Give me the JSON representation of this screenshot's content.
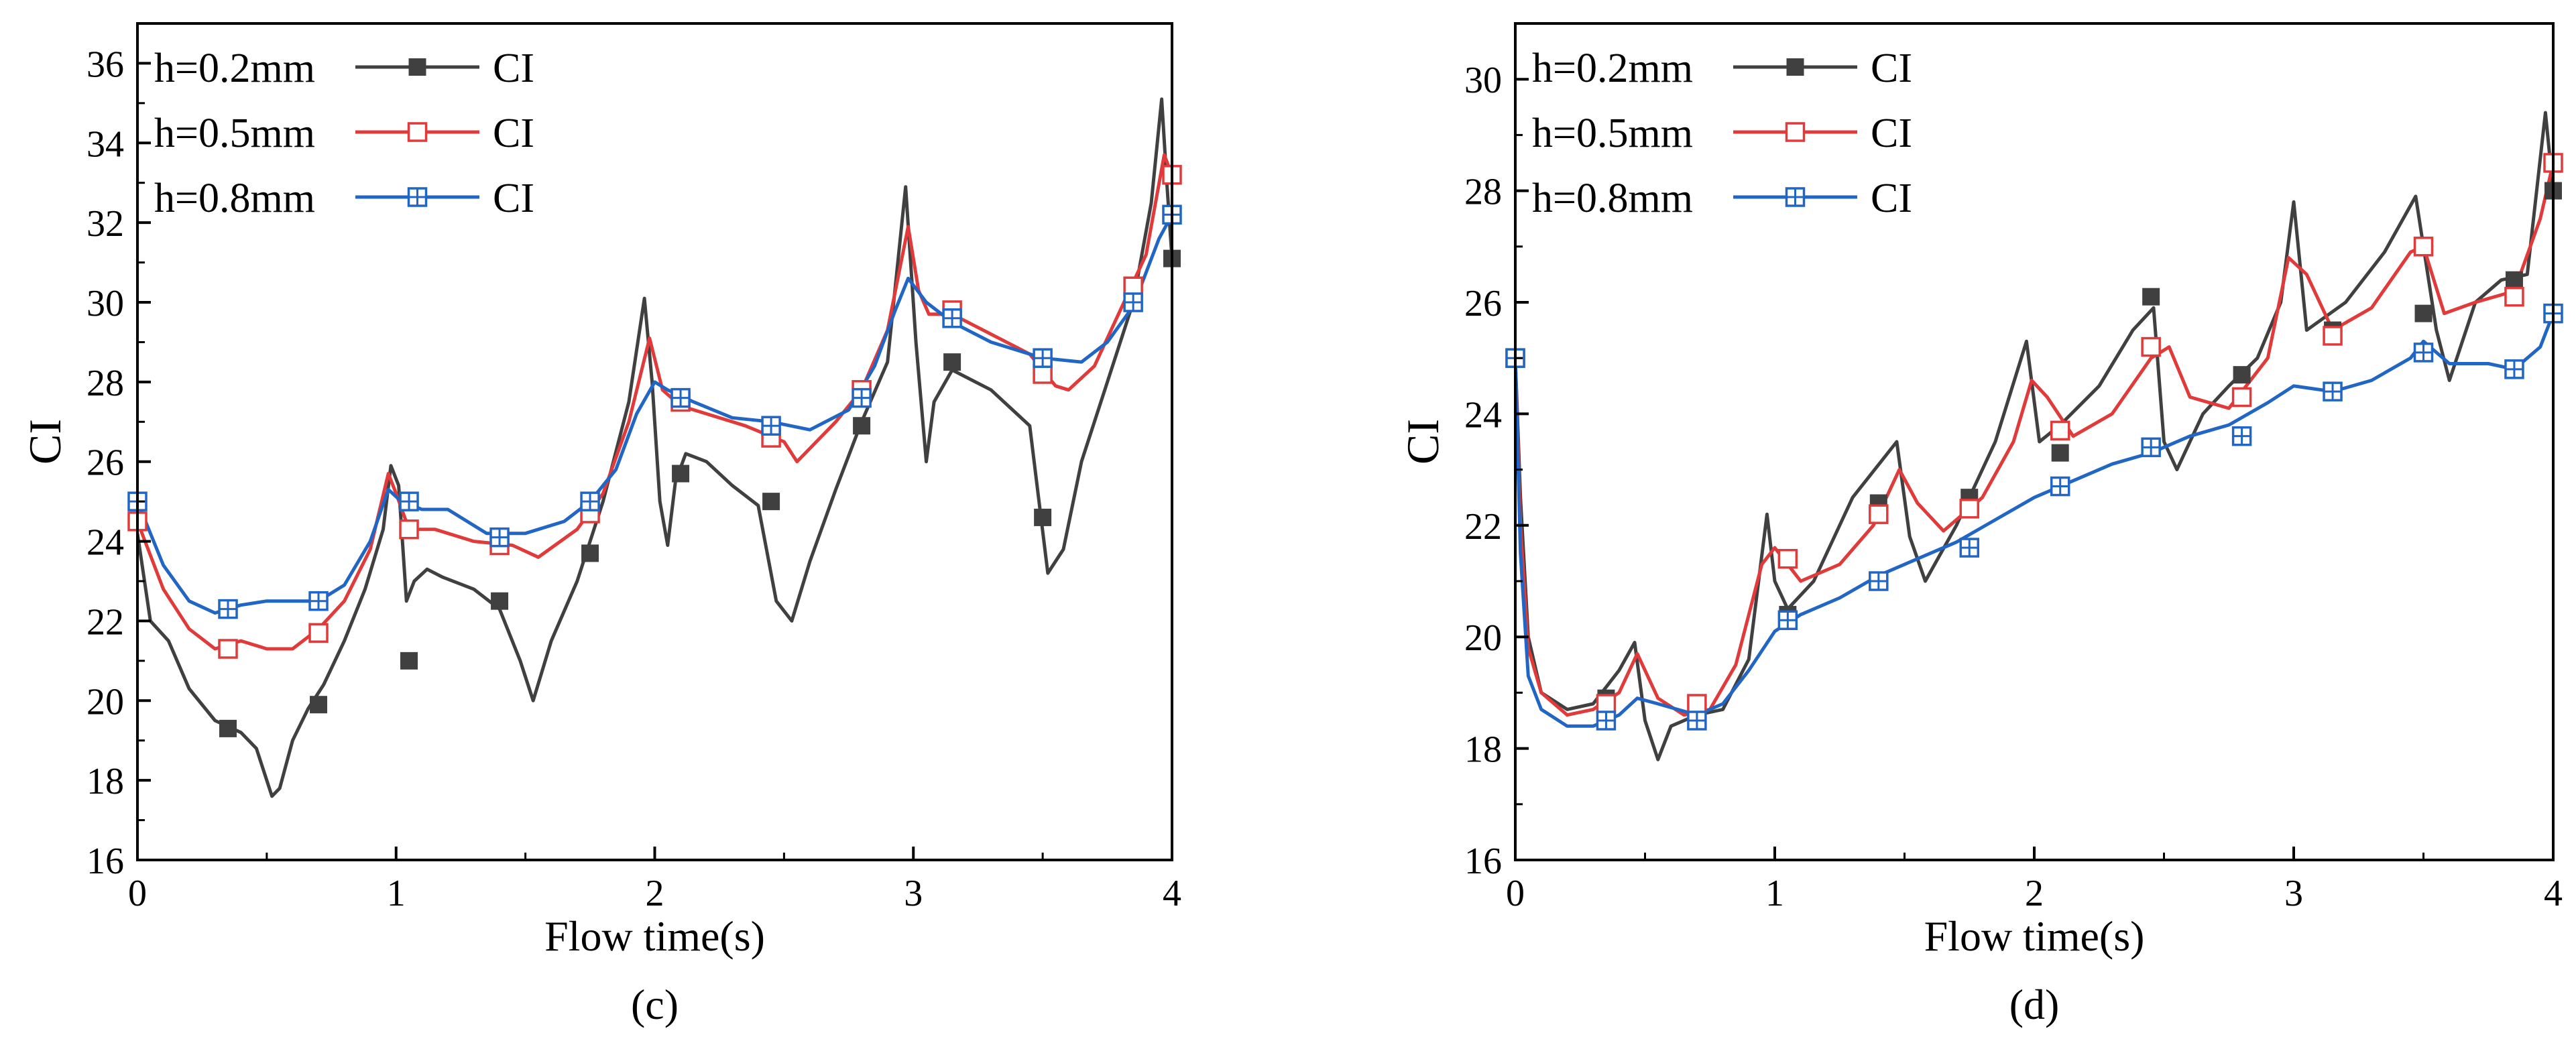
{
  "chart_data": [
    {
      "type": "line",
      "panel_label": "(c)",
      "xlabel": "Flow time(s)",
      "ylabel": "CI",
      "xlim": [
        0,
        4
      ],
      "ylim": [
        16,
        37
      ],
      "xticks": [
        "0",
        "1",
        "2",
        "3",
        "4"
      ],
      "yticks": [
        "16",
        "18",
        "20",
        "22",
        "24",
        "26",
        "28",
        "30",
        "32",
        "34",
        "36"
      ],
      "legend_position": "top-left",
      "series": [
        {
          "name": "h=0.2mm",
          "legend_label": "CI",
          "color": "#404040",
          "marker": "filled-square",
          "markers_x": [
            0.35,
            0.7,
            1.05,
            1.4,
            1.75,
            2.1,
            2.45,
            2.8,
            3.15,
            3.5,
            3.85,
            4.0
          ],
          "markers_y": [
            19.3,
            19.9,
            21.0,
            22.5,
            23.7,
            25.7,
            25.0,
            26.9,
            28.5,
            24.6,
            30.0,
            31.1
          ],
          "x": [
            0,
            0.05,
            0.12,
            0.2,
            0.3,
            0.4,
            0.46,
            0.52,
            0.55,
            0.6,
            0.66,
            0.72,
            0.8,
            0.88,
            0.95,
            0.98,
            1.01,
            1.04,
            1.07,
            1.12,
            1.18,
            1.3,
            1.4,
            1.48,
            1.53,
            1.6,
            1.7,
            1.8,
            1.9,
            1.96,
            1.99,
            2.02,
            2.05,
            2.08,
            2.12,
            2.2,
            2.3,
            2.4,
            2.47,
            2.53,
            2.6,
            2.7,
            2.8,
            2.9,
            2.97,
            3.01,
            3.05,
            3.08,
            3.15,
            3.3,
            3.45,
            3.52,
            3.58,
            3.65,
            3.75,
            3.85,
            3.92,
            3.96,
            3.98,
            4.0
          ],
          "y": [
            24.2,
            22.0,
            21.5,
            20.3,
            19.5,
            19.2,
            18.8,
            17.6,
            17.8,
            19.0,
            19.8,
            20.4,
            21.5,
            22.8,
            24.3,
            25.9,
            25.4,
            22.5,
            23.0,
            23.3,
            23.1,
            22.8,
            22.3,
            21.0,
            20.0,
            21.5,
            23.0,
            25.0,
            27.5,
            30.1,
            28.0,
            25.0,
            23.9,
            25.5,
            26.2,
            26.0,
            25.4,
            24.9,
            22.5,
            22.0,
            23.5,
            25.3,
            27.0,
            28.5,
            32.9,
            29.0,
            26.0,
            27.5,
            28.3,
            27.8,
            26.9,
            23.2,
            23.8,
            26.0,
            28.0,
            30.0,
            32.5,
            35.1,
            33.0,
            31.1
          ]
        },
        {
          "name": "h=0.5mm",
          "legend_label": "CI",
          "color": "#e03a3a",
          "marker": "open-square",
          "markers_x": [
            0,
            0.35,
            0.7,
            1.05,
            1.4,
            1.75,
            2.1,
            2.45,
            2.8,
            3.15,
            3.5,
            3.85,
            4.0
          ],
          "markers_y": [
            24.5,
            21.3,
            21.7,
            24.3,
            23.9,
            24.7,
            27.5,
            26.6,
            27.8,
            29.8,
            28.2,
            30.4,
            33.2
          ],
          "x": [
            0,
            0.1,
            0.2,
            0.3,
            0.4,
            0.5,
            0.6,
            0.7,
            0.8,
            0.9,
            0.97,
            1.0,
            1.05,
            1.15,
            1.3,
            1.45,
            1.55,
            1.7,
            1.8,
            1.9,
            1.98,
            2.03,
            2.1,
            2.2,
            2.35,
            2.5,
            2.55,
            2.7,
            2.8,
            2.9,
            2.98,
            3.02,
            3.06,
            3.15,
            3.3,
            3.45,
            3.55,
            3.6,
            3.7,
            3.8,
            3.9,
            3.97,
            4.0
          ],
          "y": [
            24.5,
            22.8,
            21.8,
            21.3,
            21.5,
            21.3,
            21.3,
            21.8,
            22.5,
            23.8,
            25.7,
            25.2,
            24.3,
            24.3,
            24.0,
            23.9,
            23.6,
            24.3,
            25.2,
            27.0,
            29.1,
            27.8,
            27.4,
            27.2,
            26.9,
            26.5,
            26.0,
            27.0,
            27.8,
            29.3,
            31.9,
            30.3,
            29.7,
            29.7,
            29.2,
            28.7,
            27.9,
            27.8,
            28.4,
            29.8,
            31.2,
            33.7,
            33.2
          ]
        },
        {
          "name": "h=0.8mm",
          "legend_label": "CI",
          "color": "#2166c4",
          "marker": "crossed-square",
          "markers_x": [
            0,
            0.35,
            0.7,
            1.05,
            1.4,
            1.75,
            2.1,
            2.45,
            2.8,
            3.15,
            3.5,
            3.85,
            4.0
          ],
          "markers_y": [
            25.0,
            22.3,
            22.5,
            25.0,
            24.1,
            25.0,
            27.6,
            26.9,
            27.6,
            29.6,
            28.6,
            30.0,
            32.2
          ],
          "x": [
            0,
            0.1,
            0.2,
            0.3,
            0.4,
            0.5,
            0.6,
            0.7,
            0.8,
            0.9,
            0.97,
            1.02,
            1.1,
            1.2,
            1.35,
            1.5,
            1.65,
            1.75,
            1.85,
            1.93,
            2.0,
            2.05,
            2.15,
            2.3,
            2.45,
            2.6,
            2.75,
            2.85,
            2.93,
            2.98,
            3.05,
            3.15,
            3.3,
            3.5,
            3.65,
            3.75,
            3.85,
            3.95,
            4.0
          ],
          "y": [
            25.0,
            23.4,
            22.5,
            22.2,
            22.4,
            22.5,
            22.5,
            22.5,
            22.9,
            24.0,
            25.3,
            25.0,
            24.8,
            24.8,
            24.2,
            24.2,
            24.5,
            25.0,
            25.8,
            27.2,
            28.0,
            27.8,
            27.5,
            27.1,
            27.0,
            26.8,
            27.3,
            28.4,
            29.8,
            30.6,
            30.0,
            29.5,
            29.0,
            28.6,
            28.5,
            29.0,
            29.9,
            31.6,
            32.2
          ]
        }
      ]
    },
    {
      "type": "line",
      "panel_label": "(d)",
      "xlabel": "Flow time(s)",
      "ylabel": "CI",
      "xlim": [
        0,
        4
      ],
      "ylim": [
        16,
        31
      ],
      "xticks": [
        "0",
        "1",
        "2",
        "3",
        "4"
      ],
      "yticks": [
        "16",
        "18",
        "20",
        "22",
        "24",
        "26",
        "28",
        "30"
      ],
      "legend_position": "top-left",
      "series": [
        {
          "name": "h=0.2mm",
          "legend_label": "CI",
          "color": "#404040",
          "marker": "filled-square",
          "markers_x": [
            0,
            0.35,
            0.7,
            1.05,
            1.4,
            1.75,
            2.1,
            2.45,
            2.8,
            3.15,
            3.5,
            3.85,
            4.0
          ],
          "markers_y": [
            25.0,
            18.9,
            18.8,
            20.4,
            22.4,
            22.5,
            23.3,
            26.1,
            24.7,
            25.5,
            25.8,
            26.4,
            28.0
          ],
          "x": [
            0,
            0.02,
            0.05,
            0.1,
            0.2,
            0.3,
            0.4,
            0.46,
            0.5,
            0.55,
            0.6,
            0.7,
            0.8,
            0.9,
            0.97,
            1.0,
            1.05,
            1.15,
            1.3,
            1.47,
            1.52,
            1.58,
            1.7,
            1.85,
            1.97,
            2.02,
            2.1,
            2.25,
            2.38,
            2.46,
            2.5,
            2.55,
            2.65,
            2.75,
            2.86,
            2.95,
            3.0,
            3.05,
            3.2,
            3.35,
            3.47,
            3.55,
            3.6,
            3.7,
            3.8,
            3.9,
            3.97,
            4.0
          ],
          "y": [
            25.0,
            22.5,
            20.0,
            19.0,
            18.7,
            18.8,
            19.4,
            19.9,
            18.5,
            17.8,
            18.4,
            18.6,
            18.7,
            19.6,
            22.2,
            21.0,
            20.5,
            21.0,
            22.5,
            23.5,
            21.8,
            21.0,
            22.0,
            23.5,
            25.3,
            23.5,
            23.8,
            24.5,
            25.5,
            25.9,
            23.5,
            23.0,
            24.0,
            24.5,
            25.0,
            26.0,
            27.8,
            25.5,
            26.0,
            26.9,
            27.9,
            25.5,
            24.6,
            26.0,
            26.4,
            26.5,
            29.4,
            28.0
          ]
        },
        {
          "name": "h=0.5mm",
          "legend_label": "CI",
          "color": "#e03a3a",
          "marker": "open-square",
          "markers_x": [
            0,
            0.35,
            0.7,
            1.05,
            1.4,
            1.75,
            2.1,
            2.45,
            2.8,
            3.15,
            3.5,
            3.85,
            4.0
          ],
          "markers_y": [
            25.0,
            18.8,
            18.8,
            21.4,
            22.2,
            22.3,
            23.7,
            25.2,
            24.3,
            25.4,
            27.0,
            26.1,
            28.5
          ],
          "x": [
            0,
            0.02,
            0.05,
            0.1,
            0.2,
            0.3,
            0.4,
            0.47,
            0.55,
            0.65,
            0.75,
            0.85,
            0.95,
            1.0,
            1.1,
            1.25,
            1.38,
            1.48,
            1.55,
            1.65,
            1.8,
            1.92,
            1.99,
            2.05,
            2.15,
            2.3,
            2.45,
            2.52,
            2.6,
            2.75,
            2.9,
            2.98,
            3.05,
            3.15,
            3.3,
            3.45,
            3.5,
            3.58,
            3.7,
            3.85,
            3.95,
            4.0
          ],
          "y": [
            25.0,
            22.0,
            19.8,
            19.0,
            18.6,
            18.7,
            19.0,
            19.7,
            18.9,
            18.6,
            18.7,
            19.5,
            21.3,
            21.6,
            21.0,
            21.3,
            22.0,
            23.0,
            22.4,
            21.9,
            22.5,
            23.5,
            24.6,
            24.3,
            23.6,
            24.0,
            25.0,
            25.2,
            24.3,
            24.1,
            25.0,
            26.8,
            26.5,
            25.5,
            25.9,
            26.9,
            27.0,
            25.8,
            26.0,
            26.2,
            27.5,
            28.5
          ]
        },
        {
          "name": "h=0.8mm",
          "legend_label": "CI",
          "color": "#2166c4",
          "marker": "crossed-square",
          "markers_x": [
            0,
            0.35,
            0.7,
            1.05,
            1.4,
            1.75,
            2.1,
            2.45,
            2.8,
            3.15,
            3.5,
            3.85,
            4.0
          ],
          "markers_y": [
            25.0,
            18.5,
            18.5,
            20.3,
            21.0,
            21.6,
            22.7,
            23.4,
            23.6,
            24.4,
            25.1,
            24.8,
            25.8
          ],
          "x": [
            0,
            0.02,
            0.05,
            0.1,
            0.2,
            0.3,
            0.4,
            0.47,
            0.55,
            0.7,
            0.8,
            0.9,
            1.0,
            1.1,
            1.25,
            1.4,
            1.55,
            1.7,
            1.85,
            2.0,
            2.15,
            2.3,
            2.45,
            2.6,
            2.75,
            2.9,
            3.0,
            3.15,
            3.3,
            3.45,
            3.5,
            3.6,
            3.75,
            3.85,
            3.95,
            4.0
          ],
          "y": [
            25.0,
            21.5,
            19.3,
            18.7,
            18.4,
            18.4,
            18.6,
            18.9,
            18.8,
            18.6,
            18.8,
            19.4,
            20.1,
            20.4,
            20.7,
            21.1,
            21.4,
            21.7,
            22.1,
            22.5,
            22.8,
            23.1,
            23.3,
            23.6,
            23.8,
            24.2,
            24.5,
            24.4,
            24.6,
            25.0,
            25.3,
            24.9,
            24.9,
            24.8,
            25.2,
            25.8
          ]
        }
      ]
    }
  ]
}
